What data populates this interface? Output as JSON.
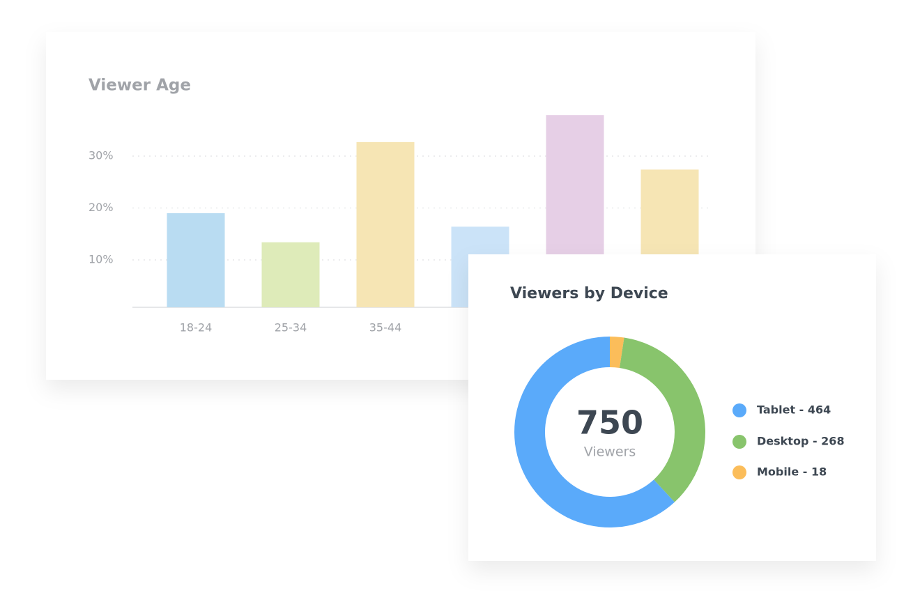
{
  "chart_data": [
    {
      "type": "bar",
      "title": "Viewer Age",
      "categories": [
        "18-24",
        "25-34",
        "35-44",
        null,
        null,
        null
      ],
      "values": [
        19.0,
        13.4,
        32.7,
        16.4,
        37.9,
        27.4
      ],
      "colors": [
        "#b9dcf2",
        "#deebb9",
        "#f6e5b4",
        "#cbe3f8",
        "#e6cfe6",
        "#f6e5b4"
      ],
      "ylim": [
        0,
        40
      ],
      "yticks": [
        {
          "value": 10,
          "label": "10%"
        },
        {
          "value": 20,
          "label": "20%"
        },
        {
          "value": 30,
          "label": "30%"
        }
      ],
      "grid": true
    },
    {
      "type": "donut",
      "title": "Viewers by Device",
      "categories": [
        "Tablet",
        "Desktop",
        "Mobile"
      ],
      "values": [
        464,
        268,
        18
      ],
      "value_labels": [
        "Tablet - 464",
        "Desktop - 268",
        "Mobile - 18"
      ],
      "colors": [
        "#5aaafa",
        "#88c46c",
        "#fbbd5a"
      ],
      "center_value": 750,
      "center_label": "Viewers"
    }
  ]
}
